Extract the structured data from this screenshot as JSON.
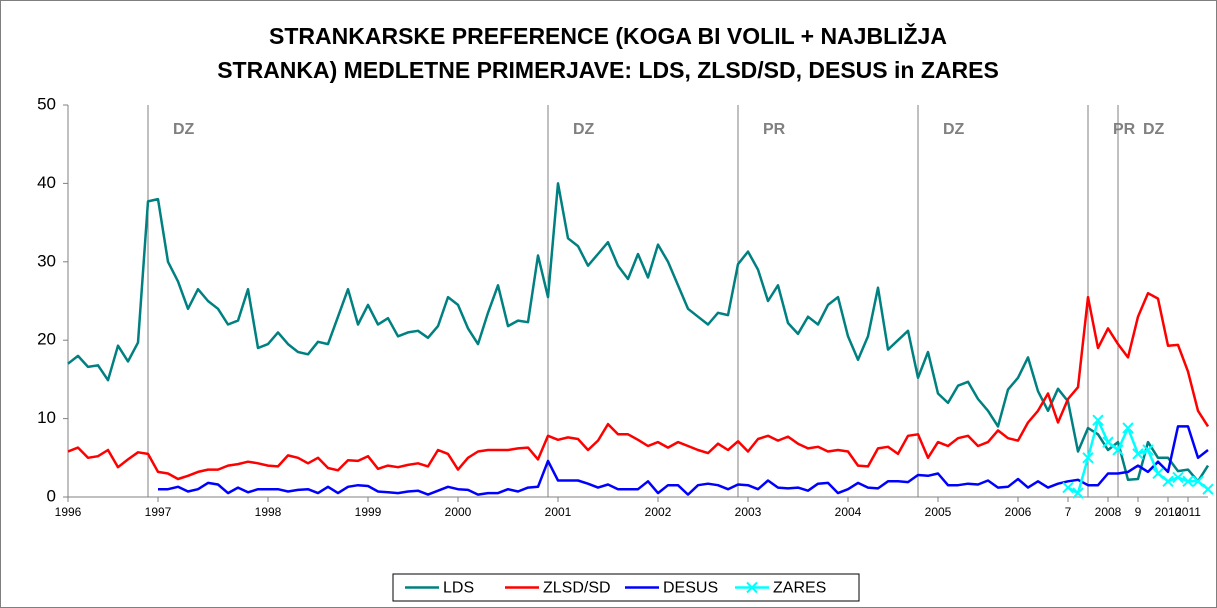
{
  "chart_data": {
    "type": "line",
    "title": [
      "STRANKARSKE PREFERENCE (KOGA BI VOLIL + NAJBLIŽJA",
      "STRANKA) MEDLETNE PRIMERJAVE: LDS, ZLSD/SD, DESUS in ZARES"
    ],
    "categories": [
      "1996",
      null,
      null,
      null,
      null,
      null,
      null,
      null,
      null,
      "1997",
      null,
      null,
      null,
      null,
      null,
      null,
      null,
      null,
      null,
      null,
      "1998",
      null,
      null,
      null,
      null,
      null,
      null,
      null,
      null,
      null,
      "1999",
      null,
      null,
      null,
      null,
      null,
      null,
      null,
      null,
      "2000",
      null,
      null,
      null,
      null,
      null,
      null,
      null,
      null,
      null,
      "2001",
      null,
      null,
      null,
      null,
      null,
      null,
      null,
      null,
      null,
      "2002",
      null,
      null,
      null,
      null,
      null,
      null,
      null,
      null,
      "2003",
      null,
      null,
      null,
      null,
      null,
      null,
      null,
      null,
      null,
      "2004",
      null,
      null,
      null,
      null,
      null,
      null,
      null,
      null,
      "2005",
      null,
      null,
      null,
      null,
      null,
      null,
      null,
      "2006",
      null,
      null,
      null,
      null,
      "7",
      null,
      null,
      null,
      "2008",
      null,
      null,
      "9",
      null,
      null,
      "2010",
      null,
      "2011",
      null,
      null
    ],
    "series": [
      {
        "name": "LDS",
        "color": "#008080",
        "values": [
          17,
          18,
          16.6,
          16.8,
          14.9,
          19.3,
          17.3,
          19.7,
          37.7,
          38,
          30,
          27.5,
          24,
          26.5,
          25,
          24,
          22,
          22.5,
          26.5,
          19,
          19.5,
          21,
          19.5,
          18.5,
          18.2,
          19.8,
          19.5,
          23,
          26.5,
          22,
          24.5,
          22,
          22.8,
          20.5,
          21,
          21.2,
          20.3,
          21.8,
          25.5,
          24.5,
          21.5,
          19.5,
          23.5,
          27,
          21.8,
          22.5,
          22.3,
          30.8,
          25.5,
          40,
          33,
          32,
          29.5,
          31,
          32.5,
          29.5,
          27.8,
          31,
          28,
          32.2,
          30,
          27,
          24,
          23,
          22,
          23.5,
          23.2,
          29.7,
          31.3,
          29,
          25,
          27,
          22.2,
          20.8,
          23,
          22,
          24.5,
          25.5,
          20.5,
          17.5,
          20.5,
          26.7,
          18.8,
          20,
          21.2,
          15.2,
          18.5,
          13.2,
          12,
          14.2,
          14.7,
          12.5,
          11,
          9,
          13.7,
          15.2,
          17.8,
          13.5,
          11,
          13.8,
          12.2,
          5.8,
          8.8,
          8,
          6,
          7,
          2.2,
          2.3,
          7,
          5,
          5,
          3.3,
          3.5,
          2,
          4
        ]
      },
      {
        "name": "ZLSD/SD",
        "color": "#ff0000",
        "values": [
          5.8,
          6.3,
          5,
          5.2,
          6,
          3.8,
          4.8,
          5.7,
          5.5,
          3.2,
          3,
          2.3,
          2.7,
          3.2,
          3.5,
          3.5,
          4,
          4.2,
          4.5,
          4.3,
          4,
          3.9,
          5.3,
          5,
          4.3,
          5,
          3.7,
          3.4,
          4.7,
          4.6,
          5.2,
          3.6,
          4,
          3.8,
          4.1,
          4.3,
          3.9,
          6,
          5.5,
          3.5,
          5,
          5.8,
          6,
          6,
          6,
          6.2,
          6.3,
          4.8,
          7.8,
          7.3,
          7.6,
          7.4,
          6,
          7.2,
          9.3,
          8,
          8,
          7.3,
          6.5,
          7,
          6.3,
          7,
          6.5,
          6,
          5.6,
          6.8,
          6,
          7.1,
          5.8,
          7.4,
          7.8,
          7.2,
          7.7,
          6.8,
          6.2,
          6.4,
          5.8,
          6,
          5.8,
          4,
          3.9,
          6.2,
          6.4,
          5.5,
          7.8,
          8,
          5,
          7,
          6.5,
          7.5,
          7.8,
          6.5,
          7,
          8.5,
          7.5,
          7.2,
          9.5,
          11,
          13.2,
          9.5,
          12.5,
          14,
          25.5,
          19,
          21.5,
          19.5,
          17.8,
          23,
          26,
          25.3,
          19.3,
          19.4,
          16,
          11,
          9
        ]
      },
      {
        "name": "DESUS",
        "color": "#0000ff",
        "values": [
          null,
          null,
          null,
          null,
          null,
          null,
          null,
          null,
          null,
          1,
          1,
          1.3,
          0.7,
          1,
          1.8,
          1.6,
          0.5,
          1.2,
          0.6,
          1,
          1,
          1,
          0.7,
          0.9,
          1,
          0.5,
          1.3,
          0.5,
          1.3,
          1.5,
          1.4,
          0.7,
          0.6,
          0.5,
          0.7,
          0.8,
          0.3,
          0.8,
          1.3,
          1,
          0.9,
          0.3,
          0.5,
          0.5,
          1,
          0.7,
          1.2,
          1.3,
          4.6,
          2.1,
          2.1,
          2.1,
          1.7,
          1.2,
          1.6,
          1,
          1,
          1,
          2,
          0.5,
          1.5,
          1.5,
          0.3,
          1.5,
          1.7,
          1.5,
          1,
          1.6,
          1.5,
          1,
          2.1,
          1.2,
          1.1,
          1.2,
          0.8,
          1.7,
          1.8,
          0.5,
          1,
          1.8,
          1.2,
          1.1,
          2,
          2,
          1.9,
          2.8,
          2.7,
          3,
          1.5,
          1.5,
          1.7,
          1.6,
          2.1,
          1.2,
          1.3,
          2.3,
          1.2,
          2,
          1.2,
          1.7,
          2,
          2.2,
          1.5,
          1.5,
          3,
          3,
          3.2,
          4,
          3.2,
          4.5,
          3.2,
          9,
          9,
          5,
          6
        ]
      },
      {
        "name": "ZARES",
        "color": "#00ffff",
        "values": [
          null,
          null,
          null,
          null,
          null,
          null,
          null,
          null,
          null,
          null,
          null,
          null,
          null,
          null,
          null,
          null,
          null,
          null,
          null,
          null,
          null,
          null,
          null,
          null,
          null,
          null,
          null,
          null,
          null,
          null,
          null,
          null,
          null,
          null,
          null,
          null,
          null,
          null,
          null,
          null,
          null,
          null,
          null,
          null,
          null,
          null,
          null,
          null,
          null,
          null,
          null,
          null,
          null,
          null,
          null,
          null,
          null,
          null,
          null,
          null,
          null,
          null,
          null,
          null,
          null,
          null,
          null,
          null,
          null,
          null,
          null,
          null,
          null,
          null,
          null,
          null,
          null,
          null,
          null,
          null,
          null,
          null,
          null,
          null,
          null,
          null,
          null,
          null,
          null,
          null,
          null,
          null,
          null,
          null,
          null,
          null,
          null,
          null,
          null,
          null,
          1.2,
          0.5,
          5,
          9.8,
          7,
          6,
          8.8,
          5.5,
          6,
          3,
          2,
          2.5,
          2,
          2,
          1
        ],
        "marker": "x"
      }
    ],
    "annotations": [
      {
        "index": 8,
        "text": "DZ"
      },
      {
        "index": 48,
        "text": "DZ"
      },
      {
        "index": 67,
        "text": "PR"
      },
      {
        "index": 85,
        "text": "DZ"
      },
      {
        "index": 102,
        "text": "PR"
      },
      {
        "index": 105,
        "text": "DZ"
      }
    ],
    "ylim": [
      0,
      50
    ],
    "yticks": [
      0,
      10,
      20,
      30,
      40,
      50
    ],
    "grid": false,
    "legend": "bottom"
  }
}
